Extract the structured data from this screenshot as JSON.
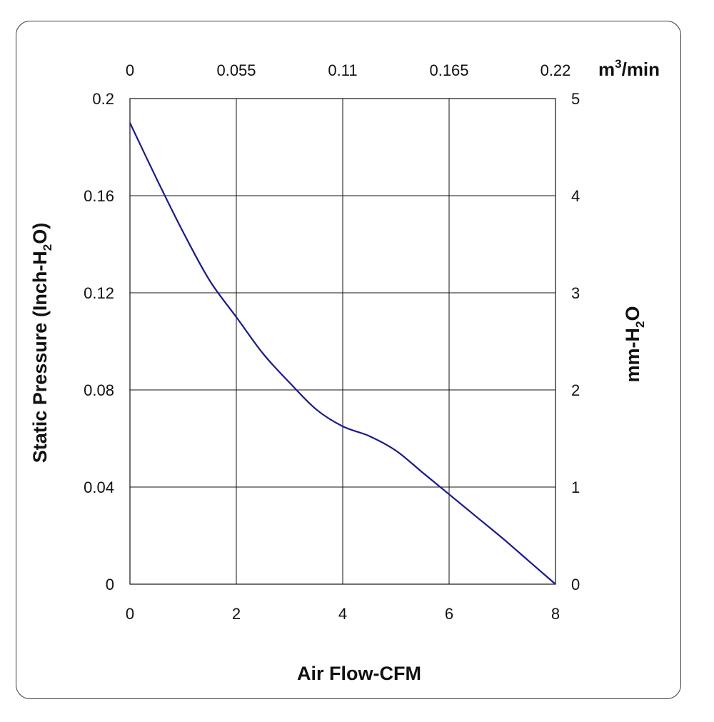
{
  "chart_data": {
    "type": "line",
    "xlabel": "Air Flow-CFM",
    "ylabel": {
      "prefix": "Static Pressure (Inch-H",
      "sub": "2",
      "suffix": "O)"
    },
    "y2label": {
      "prefix": "mm-H",
      "sub": "2",
      "suffix": "O"
    },
    "x2label": {
      "prefix": "m",
      "sup": "3",
      "suffix": "/min"
    },
    "xlim": [
      0,
      8
    ],
    "ylim": [
      0,
      0.2
    ],
    "y2lim": [
      0,
      5
    ],
    "x2lim": [
      0,
      0.22
    ],
    "x_ticks": [
      "0",
      "2",
      "4",
      "6",
      "8"
    ],
    "y_ticks": [
      "0",
      "0.04",
      "0.08",
      "0.12",
      "0.16",
      "0.2"
    ],
    "y2_ticks": [
      "0",
      "1",
      "2",
      "3",
      "4",
      "5"
    ],
    "x2_ticks": [
      "0",
      "0.055",
      "0.11",
      "0.165",
      "0.22"
    ],
    "grid": true,
    "line_color": "#1a1a8c",
    "series": [
      {
        "x": [
          0,
          0.5,
          1,
          1.5,
          2,
          2.5,
          3,
          3.5,
          4,
          4.5,
          5,
          5.5,
          6,
          6.5,
          7,
          7.5,
          8
        ],
        "y": [
          0.19,
          0.167,
          0.145,
          0.125,
          0.11,
          0.095,
          0.083,
          0.072,
          0.065,
          0.061,
          0.055,
          0.046,
          0.037,
          0.028,
          0.019,
          0.0095,
          0.0
        ]
      }
    ]
  }
}
